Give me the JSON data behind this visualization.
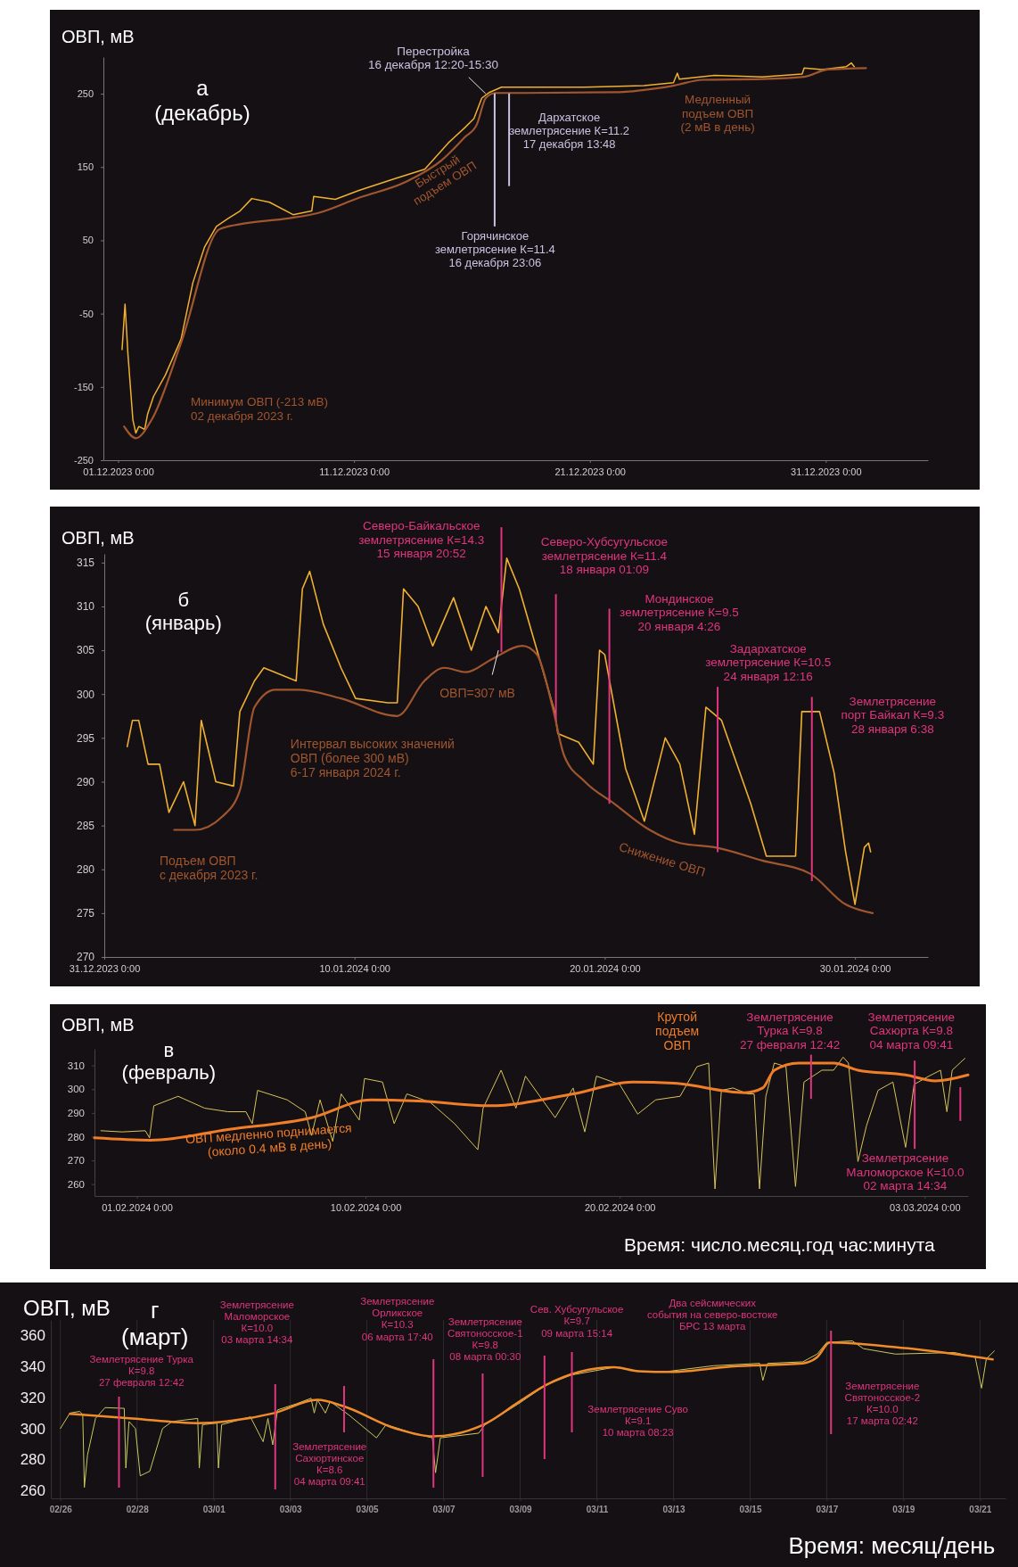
{
  "chart_data": [
    {
      "type": "line",
      "title": "а\n(декабрь)",
      "ylabel": "ОВП, мВ",
      "xlim": [
        "2023-11-30T09:00",
        "2024-01-04T08:00"
      ],
      "ylim": [
        -250,
        300
      ],
      "xticks": [
        {
          "value": "2023-12-01T00:00",
          "label": "01.12.2023 0:00"
        },
        {
          "value": "2023-12-11T00:00",
          "label": "11.12.2023 0:00"
        },
        {
          "value": "2023-12-21T00:00",
          "label": "21.12.2023 0:00"
        },
        {
          "value": "2023-12-31T00:00",
          "label": "31.12.2023 0:00"
        }
      ],
      "yticks": [
        -250,
        -150,
        -50,
        50,
        150,
        250
      ],
      "series": [
        {
          "color": "#f0b030",
          "x": [
            "2023-12-01T04:00",
            "2023-12-01T07:00",
            "2023-12-01T10:00",
            "2023-12-01T15:00",
            "2023-12-01T18:00",
            "2023-12-01T21:00",
            "2023-12-02T03:00",
            "2023-12-02T06:00",
            "2023-12-02T12:00",
            "2023-12-03T00:00",
            "2023-12-03T16:00",
            "2023-12-04T04:00",
            "2023-12-04T16:00",
            "2023-12-05T04:00",
            "2023-12-05T16:00",
            "2023-12-06T04:00",
            "2023-12-06T16:00",
            "2023-12-07T10:00",
            "2023-12-08T10:00",
            "2023-12-09T05:00",
            "2023-12-09T07:00",
            "2023-12-10T05:00",
            "2023-12-11T05:00",
            "2023-12-12T17:00",
            "2023-12-14T00:00",
            "2023-12-15T00:00",
            "2023-12-15T17:00",
            "2023-12-16T02:00",
            "2023-12-16T10:00",
            "2023-12-16T18:00",
            "2023-12-17T06:00",
            "2023-12-18T06:00",
            "2023-12-20T19:00",
            "2023-12-23T07:00",
            "2023-12-24T13:00",
            "2023-12-24T17:00",
            "2023-12-24T19:00",
            "2023-12-26T07:00",
            "2023-12-28T07:00",
            "2023-12-30T00:00",
            "2023-12-30T02:00",
            "2023-12-30T20:00",
            "2023-12-31T21:00",
            "2024-01-01T02:00",
            "2024-01-01T05:00"
          ],
          "values": [
            -99,
            -37,
            -106,
            -195,
            -213,
            -204,
            -208,
            -187,
            -163,
            -134,
            -85,
            -8,
            41,
            69,
            80,
            90,
            107,
            102,
            85,
            90,
            110,
            106,
            118,
            134,
            147,
            183,
            204,
            216,
            244,
            252,
            259,
            259,
            259,
            261,
            265,
            278,
            270,
            275,
            273,
            277,
            285,
            283,
            287,
            292,
            287
          ]
        },
        {
          "color": "#a0562e",
          "x": [
            "2023-12-01T06:00",
            "2023-12-01T18:00",
            "2023-12-02T10:00",
            "2023-12-03T16:00",
            "2023-12-05T07:00",
            "2023-12-06T04:00",
            "2023-12-08T05:00",
            "2023-12-09T11:00",
            "2023-12-11T05:00",
            "2023-12-13T05:00",
            "2023-12-14T17:00",
            "2023-12-15T17:00",
            "2023-12-16T05:00",
            "2023-12-16T14:00",
            "2023-12-17T00:00",
            "2023-12-18T06:00",
            "2023-12-22T00:00",
            "2023-12-24T13:00",
            "2023-12-25T19:00",
            "2023-12-28T07:00",
            "2023-12-30T02:00",
            "2023-12-31T02:00",
            "2024-01-01T17:00"
          ],
          "values": [
            -204,
            -220,
            -195,
            -90,
            65,
            72,
            80,
            87,
            108,
            130,
            159,
            191,
            208,
            244,
            251,
            251,
            252,
            261,
            269,
            270,
            273,
            283,
            285
          ]
        }
      ],
      "ref_lines": [
        {
          "axis": "x",
          "value": "2023-12-16T23:06",
          "label": "Горячинское\nземлетрясение К=11.4\n16 декабря 23:06",
          "color": "#c9c2e0"
        },
        {
          "axis": "x",
          "value": "2023-12-17T13:48",
          "label": "Дархатское\nземлетрясение К=11.2\n17 декабря 13:48",
          "color": "#c9c2e0"
        }
      ],
      "annotations": [
        {
          "text": "Перестройка\n16 декабря 12:20-15:30",
          "x": "2023-12-16T14:00",
          "y": 250
        },
        "Быстрый\nподъем ОВП",
        "Медленный\nподъем ОВП\n(2 мВ в день)",
        "Минимум  ОВП (-213 мВ)\n02 декабря 2023 г."
      ]
    },
    {
      "type": "line",
      "title": "б\n(январь)",
      "ylabel": "ОВП, мВ",
      "xlim": [
        "2023-12-31T00:00",
        "2024-02-01T22:00"
      ],
      "ylim": [
        270,
        316
      ],
      "xticks": [
        {
          "value": "2023-12-31T00:00",
          "label": "31.12.2023 0:00"
        },
        {
          "value": "2024-01-10T00:00",
          "label": "10.01.2024 0:00"
        },
        {
          "value": "2024-01-20T00:00",
          "label": "20.01.2024 0:00"
        },
        {
          "value": "2024-01-30T00:00",
          "label": "30.01.2024 0:00"
        }
      ],
      "yticks": [
        270,
        275,
        280,
        285,
        290,
        295,
        300,
        305,
        310,
        315
      ],
      "series": [
        {
          "color": "#f0b030",
          "x": [
            "2023-12-31T22:00",
            "2024-01-01T03:00",
            "2024-01-01T09:00",
            "2024-01-01T18:00",
            "2024-01-02T05:00",
            "2024-01-02T14:00",
            "2024-01-03T04:00",
            "2024-01-03T15:00",
            "2024-01-03T21:00",
            "2024-01-04T11:00",
            "2024-01-05T04:00",
            "2024-01-05T10:00",
            "2024-01-06T00:00",
            "2024-01-06T09:00",
            "2024-01-07T16:00",
            "2024-01-07T22:00",
            "2024-01-08T05:00",
            "2024-01-08T18:00",
            "2024-01-09T11:00",
            "2024-01-10T01:00",
            "2024-01-11T08:00",
            "2024-01-11T17:00",
            "2024-01-11T23:00",
            "2024-01-12T13:00",
            "2024-01-13T03:00",
            "2024-01-13T23:00",
            "2024-01-14T16:00",
            "2024-01-15T06:00",
            "2024-01-15T18:00",
            "2024-01-16T02:00",
            "2024-01-16T14:00",
            "2024-01-17T07:00",
            "2024-01-18T00:00",
            "2024-01-18T03:00",
            "2024-01-18T23:00",
            "2024-01-19T13:00",
            "2024-01-19T19:00",
            "2024-01-20T00:00",
            "2024-01-20T20:00",
            "2024-01-21T14:00",
            "2024-01-22T10:00",
            "2024-01-23T00:00",
            "2024-01-23T14:00",
            "2024-01-24T01:00",
            "2024-01-24T16:00",
            "2024-01-25T20:00",
            "2024-01-26T11:00",
            "2024-01-27T15:00",
            "2024-01-27T21:00",
            "2024-01-28T14:00",
            "2024-01-29T04:00",
            "2024-01-29T15:00",
            "2024-01-30T00:00",
            "2024-01-30T09:00",
            "2024-01-30T13:00",
            "2024-01-30T15:00"
          ],
          "values": [
            294,
            297,
            297,
            292,
            292,
            286.5,
            290,
            285,
            297,
            290,
            289.5,
            298,
            301.5,
            303,
            301.5,
            312,
            314,
            308,
            303,
            299.5,
            299,
            299,
            312,
            310,
            305.5,
            311,
            305,
            310,
            307,
            315.5,
            312,
            305,
            298,
            295.5,
            294.5,
            292,
            305,
            304.5,
            291.5,
            285.5,
            295,
            292,
            284,
            298.5,
            297,
            287.5,
            281.5,
            281.5,
            298,
            298,
            291,
            282,
            276,
            282.5,
            283,
            282
          ]
        },
        {
          "color": "#a0562e",
          "x": [
            "2024-01-02T19:00",
            "2024-01-03T15:00",
            "2024-01-04T17:00",
            "2024-01-05T10:00",
            "2024-01-06T00:00",
            "2024-01-06T20:00",
            "2024-01-07T19:00",
            "2024-01-09T11:00",
            "2024-01-11T17:00",
            "2024-01-12T19:00",
            "2024-01-13T14:00",
            "2024-01-14T11:00",
            "2024-01-15T12:00",
            "2024-01-16T17:00",
            "2024-01-17T07:00",
            "2024-01-17T22:00",
            "2024-01-18T09:00",
            "2024-01-19T05:00",
            "2024-01-20T09:00",
            "2024-01-21T19:00",
            "2024-01-23T00:00",
            "2024-01-24T10:00",
            "2024-01-26T07:00",
            "2024-01-28T05:00",
            "2024-01-29T15:00",
            "2024-01-30T17:00"
          ],
          "values": [
            284.5,
            284.5,
            286,
            289,
            298.5,
            300.5,
            300.5,
            299.5,
            297.5,
            301.5,
            303,
            302.5,
            304,
            305.5,
            304.5,
            298.5,
            293,
            290,
            287.5,
            284.5,
            283,
            282.5,
            281,
            279.5,
            276,
            275
          ]
        }
      ],
      "ref_lines": [
        {
          "axis": "x",
          "value": "2024-01-15T20:52",
          "label": "Северо-Байкальское\nземлетрясение К=14.3\n15 января 20:52",
          "color": "#e0357f"
        },
        {
          "axis": "x",
          "value": "2024-01-18T01:09",
          "label": "Северо-Хубсугульское\nземлетрясение К=11.4\n18 января 01:09",
          "color": "#e0357f"
        },
        {
          "axis": "x",
          "value": "2024-01-20T04:26",
          "label": "Мондинское\nземлетрясение К=9.5\n20 января 4:26",
          "color": "#e0357f"
        },
        {
          "axis": "x",
          "value": "2024-01-24T12:16",
          "label": "Задархатское\nземлетрясение К=10.5\n24 января 12:16",
          "color": "#e0357f"
        },
        {
          "axis": "x",
          "value": "2024-01-28T06:38",
          "label": "Землетрясение\nпорт Байкал К=9.3\n28 января 6:38",
          "color": "#e0357f"
        }
      ],
      "annotations": [
        {
          "text": "ОВП=307 мВ",
          "x": "2024-01-15T18:00",
          "y": 305
        },
        "Интервал высоких значений\nОВП (более 300 мВ)\n6-17 января 2024 г.",
        "Подъем ОВП\nс декабря 2023 г.",
        "Снижение ОВП"
      ]
    },
    {
      "type": "line",
      "title": "в\n(февраль)",
      "ylabel": "ОВП, мВ",
      "xlabel": "Время: число.месяц.год  час:минута",
      "xlim": [
        "2024-01-30T08:00",
        "2024-03-04T17:00"
      ],
      "ylim": [
        255,
        317
      ],
      "xticks": [
        {
          "value": "2024-02-01T00:00",
          "label": "01.02.2024 0:00"
        },
        {
          "value": "2024-02-10T00:00",
          "label": "10.02.2024 0:00"
        },
        {
          "value": "2024-02-20T00:00",
          "label": "20.02.2024 0:00"
        },
        {
          "value": "2024-03-03T00:00",
          "label": "03.03.2024 0:00"
        }
      ],
      "yticks": [
        260,
        270,
        280,
        290,
        300,
        310
      ],
      "series": [
        {
          "color": "#d8c45a",
          "x": [
            "2024-01-30T14:00",
            "2024-01-31T10:00",
            "2024-02-01T08:00",
            "2024-02-01T12:00",
            "2024-02-01T16:00",
            "2024-02-02T15:00",
            "2024-02-03T16:00",
            "2024-02-04T14:00",
            "2024-02-05T07:00",
            "2024-02-05T13:00",
            "2024-02-05T18:00",
            "2024-02-06T22:00",
            "2024-02-07T15:00",
            "2024-02-07T21:00",
            "2024-02-08T05:00",
            "2024-02-08T17:00",
            "2024-02-09T01:00",
            "2024-02-09T18:00",
            "2024-02-09T23:00",
            "2024-02-10T16:00",
            "2024-02-11T03:00",
            "2024-02-11T15:00",
            "2024-02-12T13:00",
            "2024-02-13T12:00",
            "2024-02-14T10:00",
            "2024-02-14T15:00",
            "2024-02-15T08:00",
            "2024-02-15T22:00",
            "2024-02-16T07:00",
            "2024-02-17T11:00",
            "2024-02-18T04:00",
            "2024-02-18T15:00",
            "2024-02-19T02:00",
            "2024-02-20T00:00",
            "2024-02-20T17:00",
            "2024-02-21T10:00",
            "2024-02-22T09:00",
            "2024-02-23T01:00",
            "2024-02-23T12:00",
            "2024-02-23T18:00",
            "2024-02-24T00:00",
            "2024-02-24T11:00",
            "2024-02-25T01:00",
            "2024-02-25T07:00",
            "2024-02-25T12:00",
            "2024-02-25T18:00",
            "2024-02-26T02:00",
            "2024-02-26T13:00",
            "2024-02-26T22:00",
            "2024-02-27T06:00",
            "2024-02-27T23:00",
            "2024-02-28T10:00",
            "2024-02-28T19:00",
            "2024-02-29T00:00",
            "2024-02-29T09:00",
            "2024-02-29T17:00",
            "2024-03-01T04:00",
            "2024-03-01T18:00",
            "2024-03-02T06:00",
            "2024-03-02T14:00",
            "2024-03-03T04:00",
            "2024-03-03T15:00",
            "2024-03-03T21:00",
            "2024-03-04T02:00",
            "2024-03-04T14:00"
          ],
          "values": [
            282.5,
            282,
            282.5,
            279.5,
            293,
            297,
            292,
            290.5,
            290.5,
            285.5,
            299.5,
            295.5,
            290.5,
            280.5,
            295.5,
            278,
            298,
            287,
            304.5,
            303,
            285.5,
            298,
            294.5,
            285.5,
            274.5,
            292,
            308,
            292,
            305.5,
            288,
            300.5,
            282,
            305.5,
            302,
            289.5,
            295.5,
            297,
            309.5,
            311,
            258,
            299.5,
            300.5,
            298,
            298,
            258,
            297,
            311,
            309.5,
            259,
            303,
            308,
            308,
            313.5,
            311,
            269.5,
            284.5,
            299.5,
            303,
            275.5,
            302,
            305.5,
            308,
            290.5,
            308,
            313
          ]
        },
        {
          "color": "#f07d28",
          "x": [
            "2024-01-30T08:00",
            "2024-02-01T13:00",
            "2024-02-04T14:00",
            "2024-02-07T21:00",
            "2024-02-10T05:00",
            "2024-02-12T02:00",
            "2024-02-14T21:00",
            "2024-02-18T04:00",
            "2024-02-20T12:00",
            "2024-02-22T03:00",
            "2024-02-24T22:00",
            "2024-02-25T15:00",
            "2024-02-26T02:00",
            "2024-02-27T01:00",
            "2024-02-28T10:00",
            "2024-02-29T09:00",
            "2024-03-02T06:00",
            "2024-03-03T10:00",
            "2024-03-04T17:00"
          ],
          "values": [
            279.5,
            278.5,
            283,
            288,
            295.5,
            295,
            293,
            298,
            303,
            302.5,
            298.5,
            300.5,
            308,
            311,
            311,
            308,
            306,
            303.5,
            306
          ]
        }
      ],
      "ref_lines": [
        {
          "axis": "x",
          "value": "2024-02-27T12:42",
          "label": "Землетрясение\nТурка К=9.8\n27 февраля 12:42",
          "color": "#e0357f"
        },
        {
          "axis": "x",
          "value": "2024-03-02T14:34",
          "label": "Землетрясение\nМаломорское К=10.0\n02 марта 14:34",
          "color": "#e0357f"
        },
        {
          "axis": "x",
          "value": "2024-03-04T09:41",
          "label": "Землетрясение\nСахюрта К=9.8\n04 марта 09:41",
          "color": "#e0357f"
        }
      ],
      "annotations": [
        "Крутой\nподъем\nОВП",
        "ОВП медленно поднимается\n(около 0.4 мВ в день)"
      ]
    },
    {
      "type": "line",
      "title": "г\n(март)",
      "ylabel": "ОВП, мВ",
      "xlabel": "Время: месяц/день",
      "grid": "x",
      "xlim": [
        "--02-25T18:00",
        "--03-21T16:00"
      ],
      "ylim": [
        255,
        370
      ],
      "xticks": [
        {
          "value": "--02-26",
          "label": "02/26"
        },
        {
          "value": "--02-28",
          "label": "02/28"
        },
        {
          "value": "--03-01",
          "label": "03/01"
        },
        {
          "value": "--03-03",
          "label": "03/03"
        },
        {
          "value": "--03-05",
          "label": "03/05"
        },
        {
          "value": "--03-07",
          "label": "03/07"
        },
        {
          "value": "--03-09",
          "label": "03/09"
        },
        {
          "value": "--03-11",
          "label": "03/11"
        },
        {
          "value": "--03-13",
          "label": "03/13"
        },
        {
          "value": "--03-15",
          "label": "03/15"
        },
        {
          "value": "--03-17",
          "label": "03/17"
        },
        {
          "value": "--03-19",
          "label": "03/19"
        },
        {
          "value": "--03-21",
          "label": "03/21"
        }
      ],
      "yticks": [
        260,
        280,
        300,
        320,
        340,
        360
      ],
      "series": [
        {
          "color": "#c8c860",
          "x": [
            "--02-26T00:00",
            "--02-26T06:00",
            "--02-26T12:00",
            "--02-26T14:00",
            "--02-26T15:00",
            "--02-26T17:00",
            "--02-26T22:00",
            "--02-27T04:00",
            "--02-27T16:00",
            "--02-27T17:00",
            "--02-27T19:00",
            "--02-27T23:00",
            "--02-28T02:00",
            "--02-28T08:00",
            "--02-28T16:00",
            "--02-28T22:00",
            "--02-29T14:00",
            "--02-29T15:00",
            "--02-29T17:00",
            "--03-01T02:00",
            "--03-01T03:00",
            "--03-01T05:00",
            "--03-01T23:00",
            "--03-02T07:00",
            "--03-02T10:00",
            "--03-02T13:00",
            "--03-02T16:00",
            "--03-03T04:00",
            "--03-03T13:00",
            "--03-03T15:00",
            "--03-03T17:00",
            "--03-03T22:00",
            "--03-04T01:00",
            "--03-04T13:00",
            "--03-05T06:00",
            "--03-05T12:00",
            "--03-06T05:00",
            "--03-06T17:00",
            "--03-06T19:00",
            "--03-06T22:00",
            "--03-07T22:00",
            "--03-08T02:00",
            "--03-08T23:00",
            "--03-09T16:00",
            "--03-10T08:00",
            "--03-11T11:00",
            "--03-12T02:00",
            "--03-12T18:00",
            "--03-14T01:00",
            "--03-15T06:00",
            "--03-15T08:00",
            "--03-15T11:00",
            "--03-16T09:00",
            "--03-16T18:00",
            "--03-17T00:00",
            "--03-17T16:00",
            "--03-17T23:00",
            "--03-18T19:00",
            "--03-20T08:00",
            "--03-20T21:00",
            "--03-21T01:00",
            "--03-21T04:00",
            "--03-21T09:00"
          ],
          "values": [
            300,
            310,
            311,
            309,
            262,
            283,
            306.5,
            313.5,
            313,
            274.5,
            304.5,
            300,
            269.5,
            272.5,
            300,
            304.5,
            306.5,
            274.5,
            302.5,
            303.5,
            274.5,
            302.5,
            307.5,
            291.5,
            306.5,
            289.5,
            312,
            316,
            319.5,
            310,
            318.5,
            310,
            317.5,
            308.5,
            294,
            302.5,
            297,
            294,
            271.5,
            294,
            297,
            302.5,
            316,
            328,
            334.5,
            339.5,
            337,
            336.5,
            340.5,
            342,
            331,
            342,
            343,
            348,
            355.5,
            356.5,
            351.5,
            348,
            349,
            346,
            326,
            345,
            350
          ]
        },
        {
          "color": "#f08c2a",
          "x": [
            "--02-26T06:00",
            "--02-27T21:00",
            "--02-29T14:00",
            "--03-01T11:00",
            "--03-02T14:00",
            "--03-03T17:00",
            "--03-04T09:00",
            "--03-05T18:00",
            "--03-06T17:00",
            "--03-08T02:00",
            "--03-08T23:00",
            "--03-09T16:00",
            "--03-11T11:00",
            "--03-12T02:00",
            "--03-12T23:00",
            "--03-14T12:00",
            "--03-16T09:00",
            "--03-16T18:00",
            "--03-17T02:00",
            "--03-18T19:00",
            "--03-21T08:00"
          ],
          "values": [
            309.5,
            306.5,
            303.5,
            305,
            310,
            318.5,
            314.5,
            300,
            295,
            303,
            317,
            328,
            339.5,
            337,
            336.5,
            340,
            342,
            346,
            355.5,
            352.5,
            344.5
          ]
        }
      ],
      "ref_lines": [
        {
          "axis": "x",
          "value": "--02-27T12:42",
          "label": "Землетрясение Турка\nК=9.8\n27 февраля 12:42",
          "color": "#e0357f"
        },
        {
          "axis": "x",
          "value": "--03-02T14:34",
          "label": "Землетрясение\nМаломорское\nК=10.0\n03 марта 14:34",
          "color": "#e0357f"
        },
        {
          "axis": "x",
          "value": "--03-04T09:41",
          "label": "Землетрясение\nСахюртинское\nК=8.6\n04 марта 09:41",
          "color": "#e0357f"
        },
        {
          "axis": "x",
          "value": "--03-06T17:40",
          "label": "Землетрясение\nОрликское\nК=10.3\n06 марта 17:40",
          "color": "#e0357f"
        },
        {
          "axis": "x",
          "value": "--03-08T00:30",
          "label": "Землетрясение\nСвятоносское-1\nК=9.8\n08 марта 00:30",
          "color": "#e0357f"
        },
        {
          "axis": "x",
          "value": "--03-09T15:14",
          "label": "Сев. Хубсугульское\nК=9.7\n09 марта 15:14",
          "color": "#e0357f"
        },
        {
          "axis": "x",
          "value": "--03-10T08:23",
          "label": "Землетрясение Суво\nК=9.1\n10 марта 08:23",
          "color": "#e0357f"
        },
        {
          "axis": "x",
          "value": "--03-17T02:42",
          "label": "Землетрясение\nСвятоносское-2\nК=10.0\n17 марта 02:42",
          "color": "#e0357f"
        }
      ],
      "annotations": [
        "Два сейсмических\nсобытия на северо-востоке\nБРС 13 марта"
      ]
    }
  ]
}
